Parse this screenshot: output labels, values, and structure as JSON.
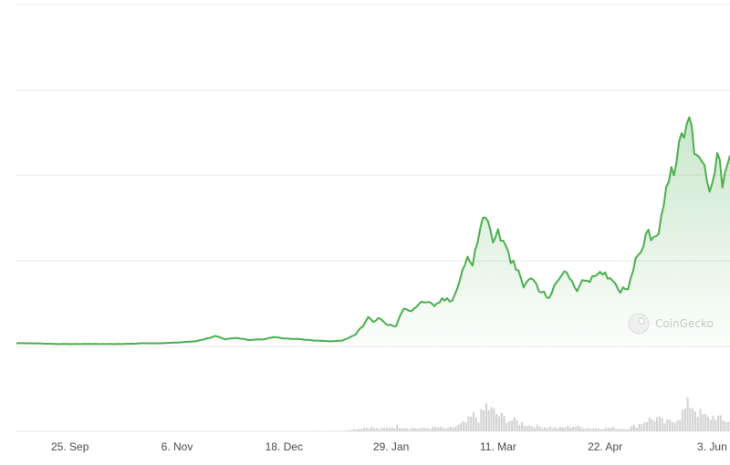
{
  "chart_data": {
    "type": "area",
    "title": "",
    "xlabel": "",
    "ylabel": "",
    "x_tick_labels": [
      "25. Sep",
      "6. Nov",
      "18. Dec",
      "29. Jan",
      "11. Mar",
      "22. Apr",
      "3. Jun"
    ],
    "x_range": [
      "2023-09-04",
      "2024-06-10"
    ],
    "y_axis": {
      "tick_labels_shown": false,
      "gridlines": 5,
      "relative_range": [
        0,
        5
      ]
    },
    "grid": true,
    "legend": "none",
    "series": [
      {
        "kind": "price",
        "color": "#4caf50",
        "fill": "gradient-green",
        "points": [
          [
            "2023-09-04",
            0.02
          ],
          [
            "2023-09-11",
            0.02
          ],
          [
            "2023-09-18",
            0.01
          ],
          [
            "2023-09-25",
            0.01
          ],
          [
            "2023-10-02",
            0.01
          ],
          [
            "2023-10-09",
            0.01
          ],
          [
            "2023-10-16",
            0.01
          ],
          [
            "2023-10-23",
            0.02
          ],
          [
            "2023-10-30",
            0.02
          ],
          [
            "2023-11-06",
            0.03
          ],
          [
            "2023-11-13",
            0.05
          ],
          [
            "2023-11-18",
            0.09
          ],
          [
            "2023-11-21",
            0.13
          ],
          [
            "2023-11-25",
            0.08
          ],
          [
            "2023-11-29",
            0.1
          ],
          [
            "2023-12-04",
            0.07
          ],
          [
            "2023-12-10",
            0.08
          ],
          [
            "2023-12-14",
            0.11
          ],
          [
            "2023-12-18",
            0.09
          ],
          [
            "2023-12-24",
            0.08
          ],
          [
            "2023-12-30",
            0.06
          ],
          [
            "2024-01-05",
            0.05
          ],
          [
            "2024-01-10",
            0.06
          ],
          [
            "2024-01-15",
            0.15
          ],
          [
            "2024-01-18",
            0.28
          ],
          [
            "2024-01-20",
            0.4
          ],
          [
            "2024-01-22",
            0.33
          ],
          [
            "2024-01-24",
            0.4
          ],
          [
            "2024-01-27",
            0.3
          ],
          [
            "2024-01-31",
            0.27
          ],
          [
            "2024-02-03",
            0.55
          ],
          [
            "2024-02-06",
            0.5
          ],
          [
            "2024-02-09",
            0.6
          ],
          [
            "2024-02-12",
            0.64
          ],
          [
            "2024-02-15",
            0.55
          ],
          [
            "2024-02-18",
            0.67
          ],
          [
            "2024-02-22",
            0.64
          ],
          [
            "2024-02-25",
            0.98
          ],
          [
            "2024-02-28",
            1.3
          ],
          [
            "2024-03-01",
            1.15
          ],
          [
            "2024-03-04",
            1.75
          ],
          [
            "2024-03-06",
            1.9
          ],
          [
            "2024-03-09",
            1.55
          ],
          [
            "2024-03-11",
            1.65
          ],
          [
            "2024-03-13",
            1.5
          ],
          [
            "2024-03-16",
            1.25
          ],
          [
            "2024-03-19",
            1.05
          ],
          [
            "2024-03-21",
            0.85
          ],
          [
            "2024-03-24",
            1.0
          ],
          [
            "2024-03-27",
            0.8
          ],
          [
            "2024-03-31",
            0.7
          ],
          [
            "2024-04-03",
            0.9
          ],
          [
            "2024-04-06",
            1.12
          ],
          [
            "2024-04-09",
            0.9
          ],
          [
            "2024-04-11",
            0.82
          ],
          [
            "2024-04-14",
            0.95
          ],
          [
            "2024-04-18",
            0.98
          ],
          [
            "2024-04-21",
            1.05
          ],
          [
            "2024-04-24",
            1.0
          ],
          [
            "2024-04-28",
            0.8
          ],
          [
            "2024-05-01",
            0.85
          ],
          [
            "2024-05-03",
            1.12
          ],
          [
            "2024-05-06",
            1.4
          ],
          [
            "2024-05-09",
            1.65
          ],
          [
            "2024-05-11",
            1.55
          ],
          [
            "2024-05-13",
            1.7
          ],
          [
            "2024-05-16",
            2.3
          ],
          [
            "2024-05-19",
            2.6
          ],
          [
            "2024-05-22",
            3.0
          ],
          [
            "2024-05-25",
            3.35
          ],
          [
            "2024-05-27",
            2.9
          ],
          [
            "2024-05-30",
            2.75
          ],
          [
            "2024-06-02",
            2.3
          ],
          [
            "2024-06-05",
            2.8
          ],
          [
            "2024-06-07",
            2.4
          ],
          [
            "2024-06-10",
            2.7
          ]
        ]
      },
      {
        "kind": "volume",
        "color": "#d5d5d5",
        "points": [
          [
            "2023-09-04",
            0.0
          ],
          [
            "2023-10-02",
            0.0
          ],
          [
            "2023-11-06",
            0.0
          ],
          [
            "2023-11-20",
            0.01
          ],
          [
            "2023-12-11",
            0.0
          ],
          [
            "2024-01-10",
            0.02
          ],
          [
            "2024-01-16",
            0.1
          ],
          [
            "2024-01-20",
            0.15
          ],
          [
            "2024-01-24",
            0.08
          ],
          [
            "2024-01-31",
            0.18
          ],
          [
            "2024-02-05",
            0.12
          ],
          [
            "2024-02-10",
            0.1
          ],
          [
            "2024-02-15",
            0.14
          ],
          [
            "2024-02-20",
            0.1
          ],
          [
            "2024-02-24",
            0.2
          ],
          [
            "2024-02-27",
            0.3
          ],
          [
            "2024-03-01",
            0.55
          ],
          [
            "2024-03-03",
            0.45
          ],
          [
            "2024-03-05",
            0.7
          ],
          [
            "2024-03-06",
            0.88
          ],
          [
            "2024-03-08",
            0.72
          ],
          [
            "2024-03-10",
            0.6
          ],
          [
            "2024-03-12",
            0.5
          ],
          [
            "2024-03-15",
            0.4
          ],
          [
            "2024-03-18",
            0.35
          ],
          [
            "2024-03-21",
            0.25
          ],
          [
            "2024-03-25",
            0.18
          ],
          [
            "2024-03-30",
            0.15
          ],
          [
            "2024-04-04",
            0.12
          ],
          [
            "2024-04-09",
            0.18
          ],
          [
            "2024-04-14",
            0.12
          ],
          [
            "2024-04-19",
            0.1
          ],
          [
            "2024-04-24",
            0.12
          ],
          [
            "2024-04-29",
            0.08
          ],
          [
            "2024-05-04",
            0.2
          ],
          [
            "2024-05-08",
            0.4
          ],
          [
            "2024-05-12",
            0.45
          ],
          [
            "2024-05-15",
            0.3
          ],
          [
            "2024-05-18",
            0.35
          ],
          [
            "2024-05-21",
            0.55
          ],
          [
            "2024-05-23",
            0.75
          ],
          [
            "2024-05-25",
            1.0
          ],
          [
            "2024-05-27",
            0.8
          ],
          [
            "2024-05-29",
            0.6
          ],
          [
            "2024-06-01",
            0.45
          ],
          [
            "2024-06-04",
            0.55
          ],
          [
            "2024-06-07",
            0.35
          ],
          [
            "2024-06-10",
            0.4
          ]
        ]
      }
    ]
  },
  "watermark": {
    "text": "CoinGecko",
    "icon": "gecko-logo-icon"
  },
  "colors": {
    "price_line": "#4caf50",
    "gridline": "#e9e9e9",
    "volume": "#d5d5d5",
    "tick_text": "#4b4b4b"
  }
}
